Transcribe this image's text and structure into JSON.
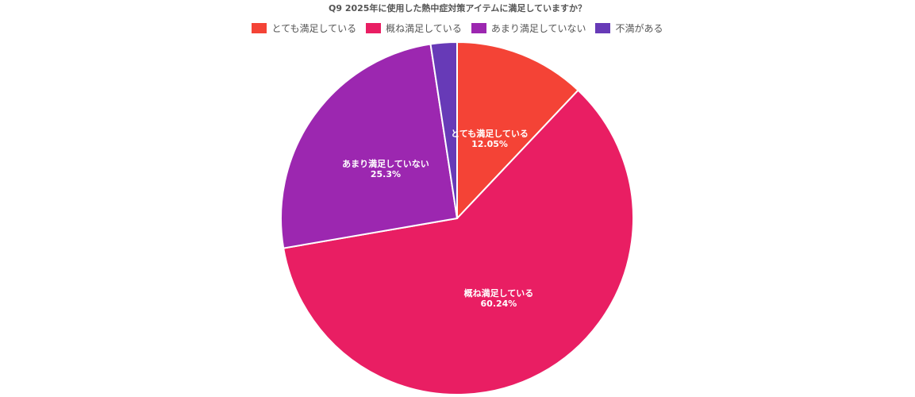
{
  "chart_data": {
    "type": "pie",
    "title": "Q9 2025年に使用した熱中症対策アイテムに満足していますか？",
    "categories": [
      "とても満足している",
      "概ね満足している",
      "あまり満足していない",
      "不満がある"
    ],
    "values": [
      12.05,
      60.24,
      25.3,
      2.41
    ],
    "value_labels": [
      "12.05%",
      "60.24%",
      "25.3%",
      ""
    ],
    "colors": [
      "#F44336",
      "#E91E63",
      "#9C27B0",
      "#673AB7"
    ],
    "legend_position": "top-center",
    "start_angle": "top, clockwise"
  }
}
